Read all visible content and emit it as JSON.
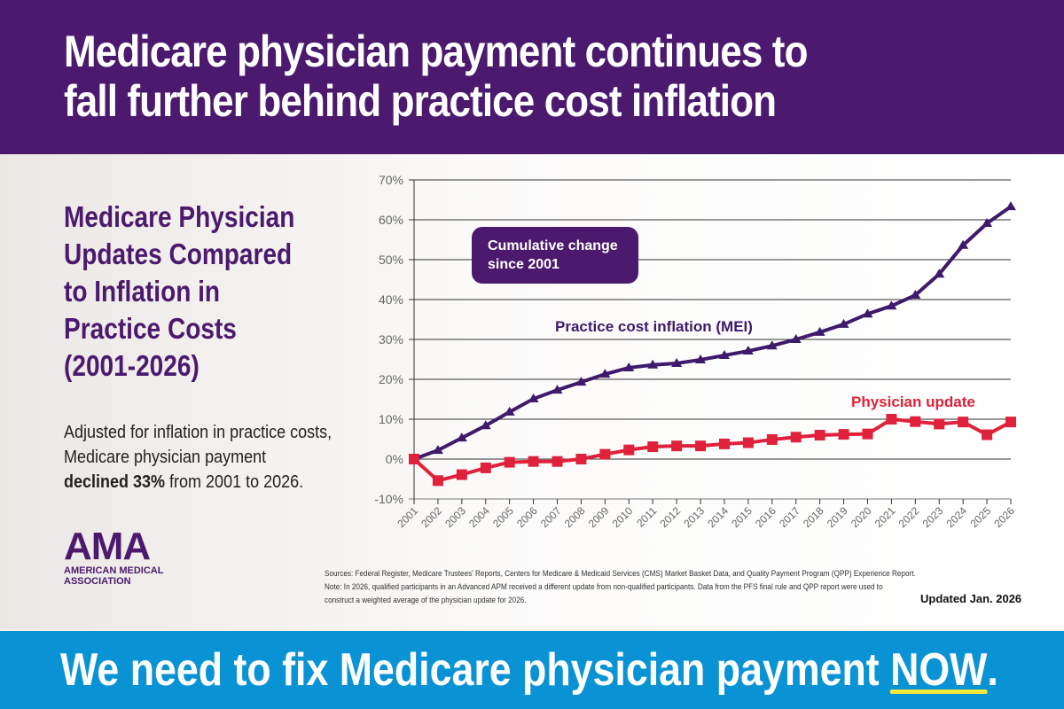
{
  "header": {
    "title_line1": "Medicare physician payment continues to",
    "title_line2": "fall further behind practice cost inflation"
  },
  "sidebar": {
    "subtitle": "Medicare Physician Updates Compared to Inflation in Practice Costs (2001-2026)",
    "adjusted_pre": "Adjusted for inflation in practice costs, Medicare physician payment ",
    "adjusted_bold": "declined 33%",
    "adjusted_post": " from 2001 to 2026.",
    "logo_word": "AMA",
    "logo_sub1": "AMERICAN MEDICAL",
    "logo_sub2": "ASSOCIATION"
  },
  "chart_data": {
    "type": "line",
    "annotation": "Cumulative change since 2001",
    "annotation_line1": "Cumulative change",
    "annotation_line2": "since 2001",
    "x": [
      "2001",
      "2002",
      "2003",
      "2004",
      "2005",
      "2006",
      "2007",
      "2008",
      "2009",
      "2010",
      "2011",
      "2012",
      "2013",
      "2014",
      "2015",
      "2016",
      "2017",
      "2018",
      "2019",
      "2020",
      "2021",
      "2022",
      "2023",
      "2024",
      "2025",
      "2026"
    ],
    "yticks": [
      "-10%",
      "0%",
      "10%",
      "20%",
      "30%",
      "40%",
      "50%",
      "60%",
      "70%"
    ],
    "ylim": [
      -10,
      70
    ],
    "grid": true,
    "series": [
      {
        "name": "Practice cost inflation (MEI)",
        "color": "#3d1a6b",
        "marker": "triangle",
        "values": [
          0,
          2.2,
          5.3,
          8.4,
          11.8,
          15.1,
          17.3,
          19.3,
          21.3,
          22.9,
          23.6,
          24.0,
          24.9,
          26.0,
          27.1,
          28.4,
          30.0,
          31.8,
          33.8,
          36.4,
          38.4,
          41.1,
          46.4,
          53.6,
          59.1,
          63.3
        ]
      },
      {
        "name": "Physician update",
        "color": "#e0213c",
        "marker": "square",
        "values": [
          0,
          -5.4,
          -3.9,
          -2.2,
          -0.8,
          -0.6,
          -0.6,
          0,
          1.2,
          2.3,
          3.1,
          3.3,
          3.3,
          3.8,
          4.1,
          4.9,
          5.5,
          6.0,
          6.2,
          6.3,
          10.0,
          9.4,
          8.8,
          9.3,
          6.1,
          9.3
        ]
      }
    ]
  },
  "notes": {
    "sources": "Sources: Federal Register, Medicare Trustees' Reports, Centers for Medicare & Medicaid Services (CMS) Market Basket Data, and Quality Payment Program (QPP) Experience Report.",
    "note1": "Note: In 2026, qualified participants in an Advanced APM received a different update from non-qualified participants. Data from the PFS final rule and QPP report were used to",
    "note2": "construct a weighted average of the physician update for 2026.",
    "updated": "Updated Jan. 2026"
  },
  "footer": {
    "cta_pre": "We need to fix Medicare physician payment ",
    "cta_now": "NOW",
    "cta_post": "."
  }
}
